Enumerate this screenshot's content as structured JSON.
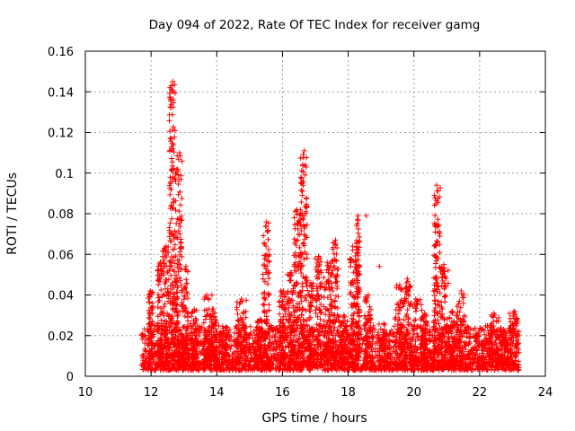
{
  "chart_data": {
    "type": "scatter",
    "title": "Day 094 of 2022, Rate Of TEC Index for receiver gamg",
    "xlabel": "GPS time / hours",
    "ylabel": "ROTI / TECUs",
    "xlim": [
      10,
      24
    ],
    "ylim": [
      0,
      0.16
    ],
    "xticks": [
      10,
      12,
      14,
      16,
      18,
      20,
      22,
      24
    ],
    "yticks": [
      0,
      0.02,
      0.04,
      0.06,
      0.08,
      0.1,
      0.12,
      0.14,
      0.16
    ],
    "xtick_labels": [
      "10",
      "12",
      "14",
      "16",
      "18",
      "20",
      "22",
      "24"
    ],
    "ytick_labels": [
      "0",
      "0.02",
      "0.04",
      "0.06",
      "0.08",
      "0.1",
      "0.12",
      "0.14",
      "0.16"
    ],
    "grid": true,
    "marker": "plus",
    "marker_color": "#ff0000",
    "data_time_range": [
      11.7,
      23.2
    ],
    "baseline_range": [
      0.003,
      0.025
    ],
    "bursts": [
      {
        "x": [
          11.9,
          12.05
        ],
        "ymax": 0.042
      },
      {
        "x": [
          12.2,
          12.35
        ],
        "ymax": 0.056
      },
      {
        "x": [
          12.35,
          12.55
        ],
        "ymax": 0.064
      },
      {
        "x": [
          12.55,
          12.75
        ],
        "ymax": 0.145
      },
      {
        "x": [
          12.75,
          12.95
        ],
        "ymax": 0.11
      },
      {
        "x": [
          12.95,
          13.15
        ],
        "ymax": 0.054
      },
      {
        "x": [
          13.2,
          13.4
        ],
        "ymax": 0.033
      },
      {
        "x": [
          13.6,
          13.8
        ],
        "ymax": 0.04
      },
      {
        "x": [
          13.8,
          14.0
        ],
        "ymax": 0.033
      },
      {
        "x": [
          14.0,
          14.4
        ],
        "ymax": 0.022
      },
      {
        "x": [
          14.6,
          14.9
        ],
        "ymax": 0.038
      },
      {
        "x": [
          15.2,
          15.4
        ],
        "ymax": 0.028
      },
      {
        "x": [
          15.4,
          15.6
        ],
        "ymax": 0.076
      },
      {
        "x": [
          15.9,
          16.15
        ],
        "ymax": 0.042
      },
      {
        "x": [
          16.15,
          16.35
        ],
        "ymax": 0.051
      },
      {
        "x": [
          16.35,
          16.55
        ],
        "ymax": 0.082
      },
      {
        "x": [
          16.55,
          16.75
        ],
        "ymax": 0.111
      },
      {
        "x": [
          16.75,
          16.95
        ],
        "ymax": 0.046
      },
      {
        "x": [
          17.0,
          17.2
        ],
        "ymax": 0.059
      },
      {
        "x": [
          17.25,
          17.5
        ],
        "ymax": 0.056
      },
      {
        "x": [
          17.5,
          17.7
        ],
        "ymax": 0.067
      },
      {
        "x": [
          17.7,
          18.0
        ],
        "ymax": 0.03
      },
      {
        "x": [
          18.05,
          18.25
        ],
        "ymax": 0.064
      },
      {
        "x": [
          18.25,
          18.35
        ],
        "ymax": 0.079
      },
      {
        "x": [
          18.5,
          18.7
        ],
        "ymax": 0.04
      },
      {
        "x": [
          18.9,
          19.3
        ],
        "ymax": 0.026
      },
      {
        "x": [
          19.4,
          19.7
        ],
        "ymax": 0.045
      },
      {
        "x": [
          19.7,
          19.9
        ],
        "ymax": 0.048
      },
      {
        "x": [
          19.9,
          20.25
        ],
        "ymax": 0.038
      },
      {
        "x": [
          20.25,
          20.4
        ],
        "ymax": 0.031
      },
      {
        "x": [
          20.6,
          20.8
        ],
        "ymax": 0.094
      },
      {
        "x": [
          20.8,
          21.05
        ],
        "ymax": 0.055
      },
      {
        "x": [
          21.05,
          21.3
        ],
        "ymax": 0.032
      },
      {
        "x": [
          21.3,
          21.55
        ],
        "ymax": 0.042
      },
      {
        "x": [
          21.55,
          22.3
        ],
        "ymax": 0.02
      },
      {
        "x": [
          22.3,
          22.6
        ],
        "ymax": 0.031
      },
      {
        "x": [
          22.6,
          22.9
        ],
        "ymax": 0.023
      },
      {
        "x": [
          22.9,
          23.2
        ],
        "ymax": 0.032
      }
    ],
    "isolated_points": [
      {
        "x": 18.55,
        "y": 0.079
      },
      {
        "x": 18.95,
        "y": 0.054
      },
      {
        "x": 20.62,
        "y": 0.045
      },
      {
        "x": 13.85,
        "y": 0.04
      }
    ]
  }
}
